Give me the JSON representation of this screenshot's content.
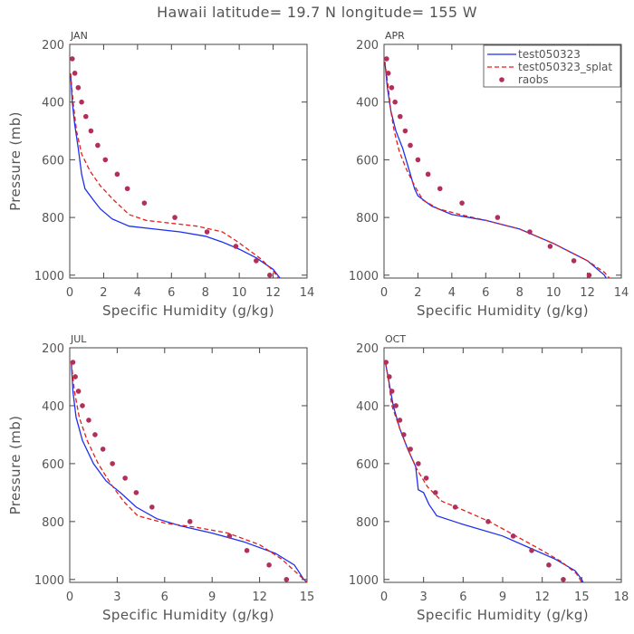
{
  "page": {
    "title": "Hawaii  latitude= 19.7 N longitude= 155 W"
  },
  "colors": {
    "series1": "#1f2ff0",
    "series2": "#e0201a",
    "obs": "#b0305a"
  },
  "legend": [
    "test050323",
    "test050323_splat",
    "raobs"
  ],
  "chart_data": [
    {
      "type": "line",
      "panel_label": "JAN",
      "xlabel": "Specific Humidity (g/kg)",
      "ylabel": "Pressure (mb)",
      "xlim": [
        0,
        14
      ],
      "ylim": [
        200,
        1010
      ],
      "y_inverted": true,
      "xticks": [
        0,
        2,
        4,
        6,
        8,
        10,
        12,
        14
      ],
      "yticks": [
        200,
        400,
        600,
        800,
        1000
      ],
      "series": [
        {
          "name": "test050323",
          "style": "solid",
          "color": "#1f2ff0",
          "points": [
            [
              0.05,
              300
            ],
            [
              0.15,
              400
            ],
            [
              0.3,
              480
            ],
            [
              0.5,
              560
            ],
            [
              0.7,
              650
            ],
            [
              0.9,
              700
            ],
            [
              1.4,
              740
            ],
            [
              1.8,
              770
            ],
            [
              2.5,
              805
            ],
            [
              3.5,
              830
            ],
            [
              5,
              840
            ],
            [
              6.5,
              850
            ],
            [
              8,
              865
            ],
            [
              9,
              885
            ],
            [
              10,
              910
            ],
            [
              11,
              940
            ],
            [
              12,
              980
            ],
            [
              12.4,
              1010
            ]
          ]
        },
        {
          "name": "test050323_splat",
          "style": "dashed",
          "color": "#e0201a",
          "points": [
            [
              0.05,
              300
            ],
            [
              0.2,
              400
            ],
            [
              0.4,
              500
            ],
            [
              0.7,
              580
            ],
            [
              1.2,
              640
            ],
            [
              1.8,
              690
            ],
            [
              2.6,
              740
            ],
            [
              3.5,
              790
            ],
            [
              4.5,
              810
            ],
            [
              6,
              820
            ],
            [
              7.5,
              830
            ],
            [
              9,
              850
            ],
            [
              9.8,
              880
            ],
            [
              10.5,
              910
            ],
            [
              11.3,
              945
            ],
            [
              12,
              985
            ],
            [
              12.3,
              1010
            ]
          ]
        }
      ],
      "observations": {
        "name": "raobs",
        "points": [
          [
            0.15,
            250
          ],
          [
            0.3,
            300
          ],
          [
            0.5,
            350
          ],
          [
            0.7,
            400
          ],
          [
            0.95,
            450
          ],
          [
            1.25,
            500
          ],
          [
            1.65,
            550
          ],
          [
            2.1,
            600
          ],
          [
            2.8,
            650
          ],
          [
            3.4,
            700
          ],
          [
            4.4,
            750
          ],
          [
            6.2,
            800
          ],
          [
            8.1,
            850
          ],
          [
            9.8,
            900
          ],
          [
            11,
            950
          ],
          [
            11.8,
            1000
          ]
        ]
      }
    },
    {
      "type": "line",
      "panel_label": "APR",
      "xlabel": "Specific Humidity (g/kg)",
      "ylabel": "",
      "xlim": [
        0,
        14
      ],
      "ylim": [
        200,
        1010
      ],
      "y_inverted": true,
      "xticks": [
        0,
        2,
        4,
        6,
        8,
        10,
        12,
        14
      ],
      "yticks": [
        200,
        400,
        600,
        800,
        1000
      ],
      "series": [
        {
          "name": "test050323",
          "style": "solid",
          "color": "#1f2ff0",
          "points": [
            [
              0.05,
              260
            ],
            [
              0.2,
              350
            ],
            [
              0.4,
              430
            ],
            [
              0.7,
              500
            ],
            [
              1.1,
              560
            ],
            [
              1.5,
              640
            ],
            [
              1.8,
              700
            ],
            [
              2,
              725
            ],
            [
              2.8,
              760
            ],
            [
              4,
              790
            ],
            [
              6,
              810
            ],
            [
              8,
              840
            ],
            [
              10,
              890
            ],
            [
              12,
              950
            ],
            [
              13,
              1000
            ],
            [
              13.1,
              1010
            ]
          ]
        },
        {
          "name": "test050323_splat",
          "style": "dashed",
          "color": "#e0201a",
          "points": [
            [
              0.05,
              260
            ],
            [
              0.25,
              350
            ],
            [
              0.4,
              430
            ],
            [
              0.6,
              500
            ],
            [
              0.9,
              570
            ],
            [
              1.3,
              630
            ],
            [
              1.8,
              690
            ],
            [
              2.3,
              740
            ],
            [
              3.2,
              770
            ],
            [
              4.5,
              790
            ],
            [
              6,
              810
            ],
            [
              8,
              840
            ],
            [
              10,
              890
            ],
            [
              12,
              950
            ],
            [
              13,
              990
            ],
            [
              13.3,
              1010
            ]
          ]
        }
      ],
      "observations": {
        "name": "raobs",
        "points": [
          [
            0.15,
            250
          ],
          [
            0.25,
            300
          ],
          [
            0.45,
            350
          ],
          [
            0.65,
            400
          ],
          [
            0.95,
            450
          ],
          [
            1.25,
            500
          ],
          [
            1.55,
            550
          ],
          [
            2,
            600
          ],
          [
            2.6,
            650
          ],
          [
            3.3,
            700
          ],
          [
            4.6,
            750
          ],
          [
            6.7,
            800
          ],
          [
            8.6,
            850
          ],
          [
            9.8,
            900
          ],
          [
            11.2,
            950
          ],
          [
            12.1,
            1000
          ]
        ]
      }
    },
    {
      "type": "line",
      "panel_label": "JUL",
      "xlabel": "Specific Humidity (g/kg)",
      "ylabel": "Pressure (mb)",
      "xlim": [
        0,
        15
      ],
      "ylim": [
        200,
        1010
      ],
      "y_inverted": true,
      "xticks": [
        0,
        3,
        6,
        9,
        12,
        15
      ],
      "yticks": [
        200,
        400,
        600,
        800,
        1000
      ],
      "series": [
        {
          "name": "test050323",
          "style": "solid",
          "color": "#1f2ff0",
          "points": [
            [
              0.1,
              250
            ],
            [
              0.2,
              350
            ],
            [
              0.4,
              440
            ],
            [
              0.8,
              520
            ],
            [
              1.5,
              600
            ],
            [
              2.3,
              660
            ],
            [
              3.2,
              700
            ],
            [
              4.2,
              750
            ],
            [
              5.5,
              790
            ],
            [
              7,
              815
            ],
            [
              9,
              840
            ],
            [
              11,
              870
            ],
            [
              13,
              910
            ],
            [
              14.2,
              950
            ],
            [
              14.8,
              1000
            ],
            [
              15,
              1010
            ]
          ]
        },
        {
          "name": "test050323_splat",
          "style": "dashed",
          "color": "#e0201a",
          "points": [
            [
              0.1,
              250
            ],
            [
              0.3,
              350
            ],
            [
              0.6,
              440
            ],
            [
              1.1,
              520
            ],
            [
              1.8,
              600
            ],
            [
              2.6,
              670
            ],
            [
              3.4,
              730
            ],
            [
              4.3,
              780
            ],
            [
              6,
              805
            ],
            [
              8,
              820
            ],
            [
              10,
              840
            ],
            [
              12,
              880
            ],
            [
              13.4,
              930
            ],
            [
              14.2,
              970
            ],
            [
              14.8,
              1000
            ],
            [
              15,
              1010
            ]
          ]
        }
      ],
      "observations": {
        "name": "raobs",
        "points": [
          [
            0.2,
            250
          ],
          [
            0.35,
            300
          ],
          [
            0.55,
            350
          ],
          [
            0.8,
            400
          ],
          [
            1.2,
            450
          ],
          [
            1.6,
            500
          ],
          [
            2.1,
            550
          ],
          [
            2.7,
            600
          ],
          [
            3.5,
            650
          ],
          [
            4.2,
            700
          ],
          [
            5.2,
            750
          ],
          [
            7.6,
            800
          ],
          [
            10.1,
            850
          ],
          [
            11.2,
            900
          ],
          [
            12.6,
            950
          ],
          [
            13.7,
            1000
          ]
        ]
      }
    },
    {
      "type": "line",
      "panel_label": "OCT",
      "xlabel": "Specific Humidity (g/kg)",
      "ylabel": "",
      "xlim": [
        0,
        18
      ],
      "ylim": [
        200,
        1010
      ],
      "y_inverted": true,
      "xticks": [
        0,
        3,
        6,
        9,
        12,
        15,
        18
      ],
      "yticks": [
        200,
        400,
        600,
        800,
        1000
      ],
      "series": [
        {
          "name": "test050323",
          "style": "solid",
          "color": "#1f2ff0",
          "points": [
            [
              0.1,
              250
            ],
            [
              0.3,
              300
            ],
            [
              0.7,
              400
            ],
            [
              1.2,
              480
            ],
            [
              1.8,
              550
            ],
            [
              2.4,
              610
            ],
            [
              2.6,
              690
            ],
            [
              3,
              700
            ],
            [
              3.4,
              740
            ],
            [
              4,
              780
            ],
            [
              6,
              810
            ],
            [
              9,
              850
            ],
            [
              11,
              890
            ],
            [
              13,
              930
            ],
            [
              14.5,
              970
            ],
            [
              15,
              1000
            ],
            [
              15.1,
              1010
            ]
          ]
        },
        {
          "name": "test050323_splat",
          "style": "dashed",
          "color": "#e0201a",
          "points": [
            [
              0.1,
              250
            ],
            [
              0.3,
              300
            ],
            [
              0.6,
              400
            ],
            [
              1.2,
              480
            ],
            [
              1.8,
              550
            ],
            [
              2.5,
              620
            ],
            [
              3.3,
              680
            ],
            [
              4.4,
              730
            ],
            [
              6,
              760
            ],
            [
              8,
              800
            ],
            [
              10,
              850
            ],
            [
              12,
              900
            ],
            [
              13.5,
              940
            ],
            [
              14.6,
              980
            ],
            [
              15,
              1010
            ]
          ]
        }
      ],
      "observations": {
        "name": "raobs",
        "points": [
          [
            0.15,
            250
          ],
          [
            0.4,
            300
          ],
          [
            0.6,
            350
          ],
          [
            0.9,
            400
          ],
          [
            1.2,
            450
          ],
          [
            1.5,
            500
          ],
          [
            2,
            550
          ],
          [
            2.6,
            600
          ],
          [
            3.2,
            650
          ],
          [
            3.9,
            700
          ],
          [
            5.4,
            750
          ],
          [
            7.9,
            800
          ],
          [
            9.8,
            850
          ],
          [
            11.2,
            900
          ],
          [
            12.5,
            950
          ],
          [
            13.6,
            1000
          ]
        ]
      }
    }
  ]
}
